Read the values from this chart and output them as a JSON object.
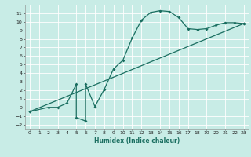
{
  "xlabel": "Humidex (Indice chaleur)",
  "xlim": [
    -0.5,
    23.5
  ],
  "ylim": [
    -2.5,
    12
  ],
  "xticks": [
    0,
    1,
    2,
    3,
    4,
    5,
    6,
    7,
    8,
    9,
    10,
    11,
    12,
    13,
    14,
    15,
    16,
    17,
    18,
    19,
    20,
    21,
    22,
    23
  ],
  "yticks": [
    -2,
    -1,
    0,
    1,
    2,
    3,
    4,
    5,
    6,
    7,
    8,
    9,
    10,
    11
  ],
  "bg_color": "#c8ece6",
  "grid_color": "#ffffff",
  "line_color": "#1a6e60",
  "curve1_x": [
    0,
    2,
    3,
    4,
    5,
    5,
    6,
    6,
    7,
    8,
    9,
    10,
    11,
    12,
    13,
    14,
    15,
    16,
    17,
    18,
    19,
    20,
    21,
    22,
    23
  ],
  "curve1_y": [
    -0.5,
    0,
    0,
    0.5,
    2.7,
    -1.2,
    -1.6,
    2.7,
    0.1,
    2.1,
    4.5,
    5.5,
    8.1,
    10.2,
    11.1,
    11.3,
    11.2,
    10.5,
    9.2,
    9.1,
    9.2,
    9.6,
    9.9,
    9.9,
    9.8
  ],
  "curve2_x": [
    0,
    23
  ],
  "curve2_y": [
    -0.5,
    9.8
  ],
  "marker": "D",
  "markersize": 2.0,
  "linewidth": 0.9,
  "tick_fontsize": 4.5,
  "label_fontsize": 5.5,
  "label_fontweight": "bold"
}
